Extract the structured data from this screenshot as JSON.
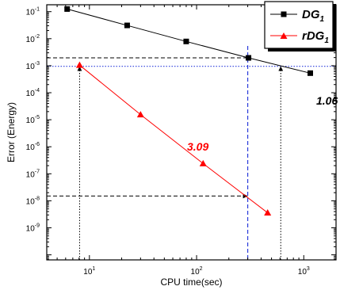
{
  "chart_data": {
    "type": "line",
    "x_scale": "log",
    "y_scale": "log",
    "xlim": [
      4,
      2000
    ],
    "ylim": [
      6.5e-11,
      0.18
    ],
    "xlabel": "CPU time(sec)",
    "ylabel": "Error (Energy)",
    "xtick_labels": [
      {
        "value": 10,
        "base": "10",
        "exp": "1"
      },
      {
        "value": 100,
        "base": "10",
        "exp": "2"
      },
      {
        "value": 1000,
        "base": "10",
        "exp": "3"
      }
    ],
    "ytick_labels": [
      {
        "value": 0.1,
        "base": "10",
        "exp": "-1"
      },
      {
        "value": 0.01,
        "base": "10",
        "exp": "-2"
      },
      {
        "value": 0.001,
        "base": "10",
        "exp": "-3"
      },
      {
        "value": 0.0001,
        "base": "10",
        "exp": "-4"
      },
      {
        "value": 1e-05,
        "base": "10",
        "exp": "-5"
      },
      {
        "value": 1e-06,
        "base": "10",
        "exp": "-6"
      },
      {
        "value": 1e-07,
        "base": "10",
        "exp": "-7"
      },
      {
        "value": 1e-08,
        "base": "10",
        "exp": "-8"
      },
      {
        "value": 1e-09,
        "base": "10",
        "exp": "-9"
      }
    ],
    "legend_position": "top-right",
    "series": [
      {
        "name": "DG",
        "name_sub": "1",
        "color": "#000000",
        "marker": "square",
        "x": [
          6.2,
          22.5,
          80,
          305,
          1150
        ],
        "y": [
          0.125,
          0.031,
          0.0079,
          0.00195,
          0.00053
        ],
        "slope_label": "1.06"
      },
      {
        "name": "rDG",
        "name_sub": "1",
        "color": "#ff0000",
        "marker": "triangle",
        "x": [
          8.1,
          30,
          115,
          460
        ],
        "y": [
          0.00105,
          1.55e-05,
          2.4e-07,
          3.6e-09
        ],
        "slope_label": "3.09"
      }
    ],
    "reference_lines": {
      "vertical_dashed_blue_x": 300,
      "horizontal_dotted_blue_y": 0.00095,
      "horizontal_dashed_black_y": 0.00195,
      "horizontal_dashed_black_low_y": 1.5e-08,
      "vertical_dotted_black_x": [
        8.1,
        610
      ]
    }
  }
}
